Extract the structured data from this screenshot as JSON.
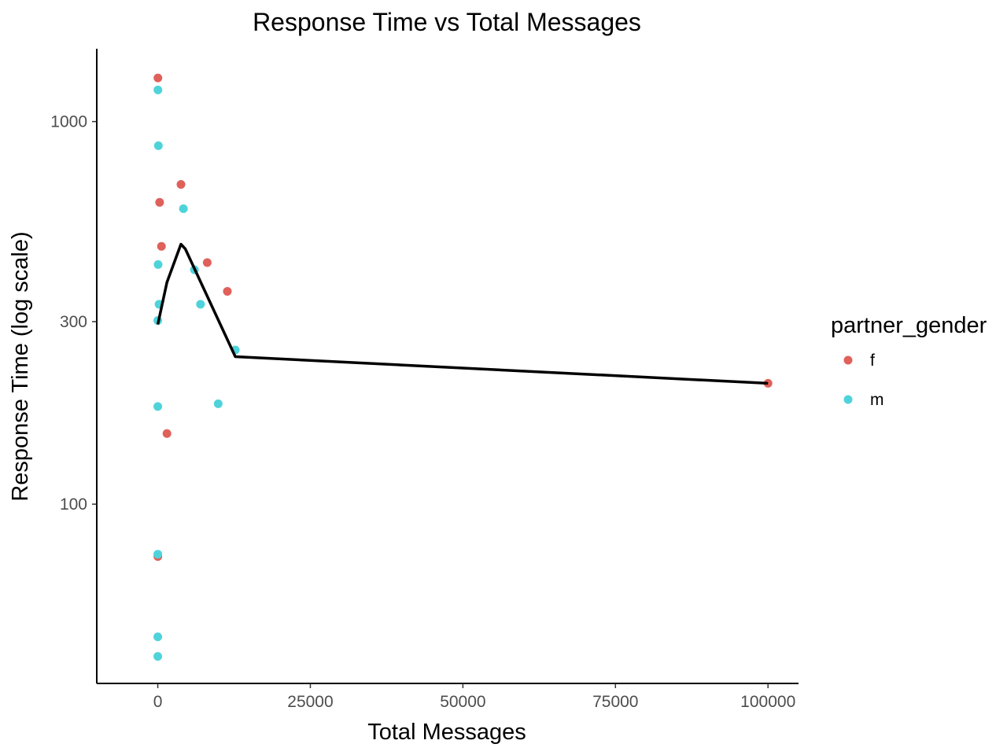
{
  "chart_data": {
    "type": "scatter",
    "title": "Response Time vs Total Messages",
    "xlabel": "Total Messages",
    "ylabel": "Response Time (log scale)",
    "x_scale": "linear",
    "y_scale": "log10",
    "xlim": [
      -10000,
      105000
    ],
    "ylim": [
      34,
      1550
    ],
    "x_ticks": [
      {
        "value": 0,
        "label": "0"
      },
      {
        "value": 25000,
        "label": "25000"
      },
      {
        "value": 50000,
        "label": "50000"
      },
      {
        "value": 75000,
        "label": "75000"
      },
      {
        "value": 100000,
        "label": "100000"
      }
    ],
    "y_ticks": [
      {
        "value": 100,
        "label": "100"
      },
      {
        "value": 300,
        "label": "300"
      },
      {
        "value": 1000,
        "label": "1000"
      }
    ],
    "grid": false,
    "legend": {
      "title": "partner_gender",
      "placement": "right",
      "entries": [
        {
          "label": "f",
          "color": "#e0605a"
        },
        {
          "label": "m",
          "color": "#4fd3da"
        }
      ]
    },
    "series": [
      {
        "name": "f",
        "color": "#e0605a",
        "points": [
          {
            "x": 20,
            "y": 1300
          },
          {
            "x": 300,
            "y": 615
          },
          {
            "x": 600,
            "y": 472
          },
          {
            "x": 3800,
            "y": 685
          },
          {
            "x": 8100,
            "y": 428
          },
          {
            "x": 11400,
            "y": 360
          },
          {
            "x": 1500,
            "y": 153
          },
          {
            "x": 10,
            "y": 73
          },
          {
            "x": 100000,
            "y": 207
          }
        ]
      },
      {
        "name": "m",
        "color": "#4fd3da",
        "points": [
          {
            "x": 20,
            "y": 1210
          },
          {
            "x": 100,
            "y": 865
          },
          {
            "x": 4200,
            "y": 592
          },
          {
            "x": 50,
            "y": 423
          },
          {
            "x": 6000,
            "y": 410
          },
          {
            "x": 200,
            "y": 333
          },
          {
            "x": 7000,
            "y": 333
          },
          {
            "x": 0,
            "y": 302
          },
          {
            "x": 12700,
            "y": 253
          },
          {
            "x": 9900,
            "y": 183
          },
          {
            "x": 0,
            "y": 180
          },
          {
            "x": 0,
            "y": 74
          },
          {
            "x": 0,
            "y": 45
          },
          {
            "x": 0,
            "y": 40
          }
        ]
      }
    ],
    "trend_line": {
      "color": "#000000",
      "points": [
        {
          "x": 0,
          "y": 295
        },
        {
          "x": 1500,
          "y": 380
        },
        {
          "x": 3800,
          "y": 478
        },
        {
          "x": 4500,
          "y": 465
        },
        {
          "x": 12700,
          "y": 243
        },
        {
          "x": 100000,
          "y": 207
        }
      ]
    }
  }
}
